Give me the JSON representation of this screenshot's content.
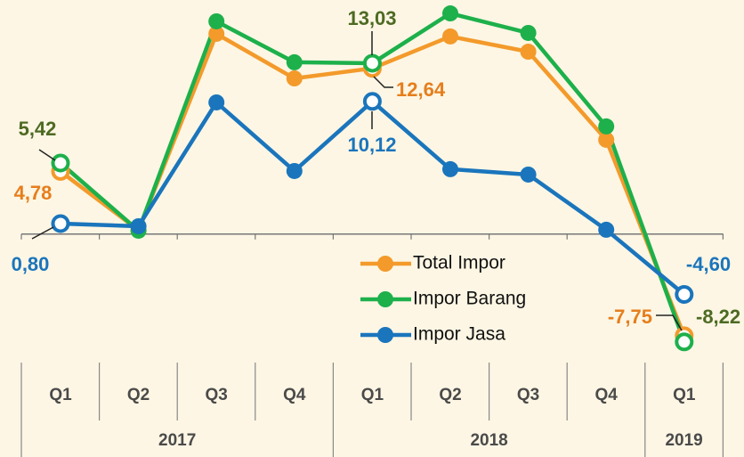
{
  "chart_data": {
    "type": "line",
    "categories": [
      "Q1",
      "Q2",
      "Q3",
      "Q4",
      "Q1",
      "Q2",
      "Q3",
      "Q4",
      "Q1"
    ],
    "groups": [
      {
        "label": "2017",
        "span": 4
      },
      {
        "label": "2018",
        "span": 4
      },
      {
        "label": "2019",
        "span": 1
      }
    ],
    "ylim": [
      -10,
      17.85
    ],
    "series": [
      {
        "name": "Total Impor",
        "color": "#f39a2b",
        "label_color": "#e67e1c",
        "values": [
          4.78,
          0.3,
          15.27,
          11.87,
          12.64,
          15.07,
          13.91,
          7.19,
          -7.75
        ],
        "value_labels": [
          "4,78",
          null,
          null,
          null,
          "12,64",
          null,
          null,
          null,
          "-7,75"
        ]
      },
      {
        "name": "Impor Barang",
        "color": "#1db04b",
        "label_color": "#4d6a22",
        "values": [
          5.42,
          0.26,
          16.22,
          13.1,
          13.03,
          16.83,
          15.34,
          8.21,
          -8.22
        ],
        "value_labels": [
          "5,42",
          null,
          null,
          null,
          "13,03",
          null,
          null,
          null,
          "-8,22"
        ]
      },
      {
        "name": "Impor Jasa",
        "color": "#1a75bc",
        "label_color": "#1a75bc",
        "values": [
          0.8,
          0.6,
          10.04,
          4.81,
          10.12,
          4.95,
          4.54,
          0.33,
          -4.6
        ],
        "value_labels": [
          "0,80",
          null,
          null,
          null,
          "10,12",
          null,
          null,
          null,
          "-4,60"
        ]
      }
    ]
  }
}
